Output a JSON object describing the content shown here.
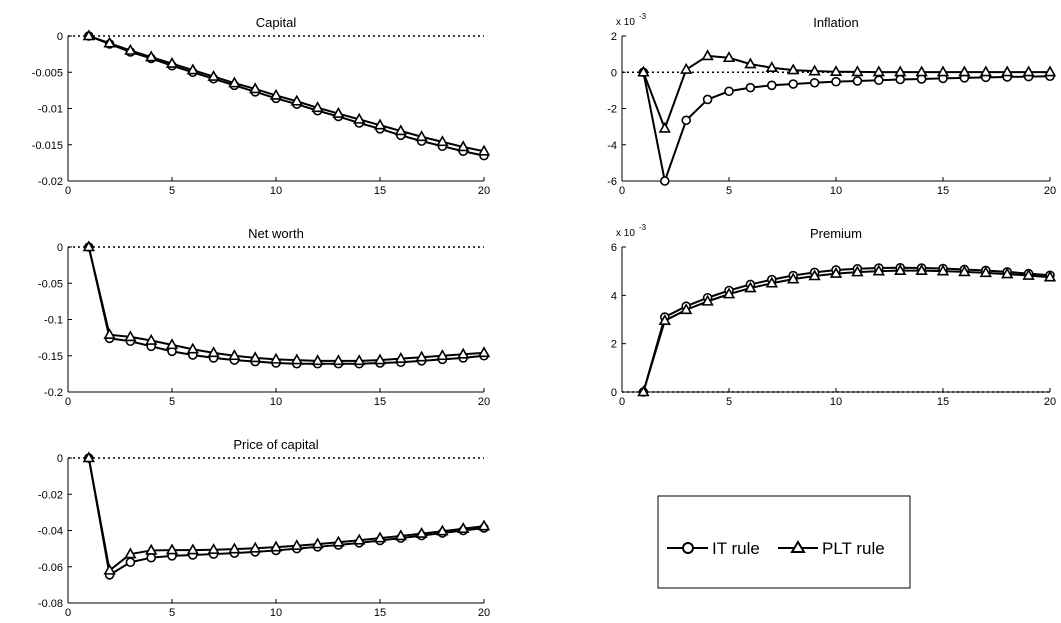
{
  "chart_data": [
    {
      "type": "line",
      "title": "Capital",
      "exponent_label": "",
      "xlim": [
        0,
        20
      ],
      "ylim": [
        -0.02,
        0
      ],
      "xticks": [
        0,
        5,
        10,
        15,
        20
      ],
      "yticks": [
        0,
        -0.005,
        -0.01,
        -0.015,
        -0.02
      ],
      "xtick_labels": [
        "0",
        "5",
        "10",
        "15",
        "20"
      ],
      "ytick_labels": [
        "0",
        "-0.005",
        "-0.01",
        "-0.015",
        "-0.02"
      ],
      "zero_line": "dotted",
      "x": [
        1,
        2,
        3,
        4,
        5,
        6,
        7,
        8,
        9,
        10,
        11,
        12,
        13,
        14,
        15,
        16,
        17,
        18,
        19,
        20
      ],
      "series": [
        {
          "marker": "circle",
          "values": [
            0,
            -0.0011,
            -0.0022,
            -0.0031,
            -0.0041,
            -0.005,
            -0.0059,
            -0.0068,
            -0.0077,
            -0.0086,
            -0.0094,
            -0.0103,
            -0.0111,
            -0.012,
            -0.0128,
            -0.0137,
            -0.0145,
            -0.0152,
            -0.0159,
            -0.0165
          ]
        },
        {
          "marker": "triangle",
          "values": [
            0,
            -0.001,
            -0.002,
            -0.0029,
            -0.0038,
            -0.0047,
            -0.0056,
            -0.0065,
            -0.0073,
            -0.0082,
            -0.009,
            -0.0099,
            -0.0107,
            -0.0115,
            -0.0123,
            -0.0131,
            -0.0139,
            -0.0146,
            -0.0153,
            -0.0159
          ]
        }
      ]
    },
    {
      "type": "line",
      "title": "Inflation",
      "exponent_label": "x 10",
      "exponent_power": "-3",
      "xlim": [
        0,
        20
      ],
      "ylim": [
        -6,
        2
      ],
      "xticks": [
        0,
        5,
        10,
        15,
        20
      ],
      "yticks": [
        2,
        0,
        -2,
        -4,
        -6
      ],
      "xtick_labels": [
        "0",
        "5",
        "10",
        "15",
        "20"
      ],
      "ytick_labels": [
        "2",
        "0",
        "-2",
        "-4",
        "-6"
      ],
      "zero_line": "dotted",
      "x": [
        1,
        2,
        3,
        4,
        5,
        6,
        7,
        8,
        9,
        10,
        11,
        12,
        13,
        14,
        15,
        16,
        17,
        18,
        19,
        20
      ],
      "series": [
        {
          "marker": "circle",
          "values": [
            0,
            -6.0,
            -2.65,
            -1.5,
            -1.05,
            -0.85,
            -0.72,
            -0.65,
            -0.58,
            -0.52,
            -0.48,
            -0.44,
            -0.4,
            -0.37,
            -0.34,
            -0.31,
            -0.28,
            -0.26,
            -0.24,
            -0.22
          ]
        },
        {
          "marker": "triangle",
          "values": [
            0,
            -3.1,
            0.15,
            0.9,
            0.8,
            0.45,
            0.25,
            0.12,
            0.06,
            0.03,
            0.02,
            0.01,
            0.01,
            0.01,
            0.01,
            0.01,
            0.01,
            0.01,
            0.01,
            0.01
          ]
        }
      ]
    },
    {
      "type": "line",
      "title": "Net worth",
      "exponent_label": "",
      "xlim": [
        0,
        20
      ],
      "ylim": [
        -0.2,
        0
      ],
      "xticks": [
        0,
        5,
        10,
        15,
        20
      ],
      "yticks": [
        0,
        -0.05,
        -0.1,
        -0.15,
        -0.2
      ],
      "xtick_labels": [
        "0",
        "5",
        "10",
        "15",
        "20"
      ],
      "ytick_labels": [
        "0",
        "-0.05",
        "-0.1",
        "-0.15",
        "-0.2"
      ],
      "zero_line": "dotted",
      "x": [
        1,
        2,
        3,
        4,
        5,
        6,
        7,
        8,
        9,
        10,
        11,
        12,
        13,
        14,
        15,
        16,
        17,
        18,
        19,
        20
      ],
      "series": [
        {
          "marker": "circle",
          "values": [
            0,
            -0.126,
            -0.13,
            -0.137,
            -0.144,
            -0.149,
            -0.153,
            -0.156,
            -0.158,
            -0.16,
            -0.161,
            -0.161,
            -0.161,
            -0.161,
            -0.16,
            -0.159,
            -0.157,
            -0.155,
            -0.153,
            -0.15
          ]
        },
        {
          "marker": "triangle",
          "values": [
            0,
            -0.121,
            -0.124,
            -0.129,
            -0.135,
            -0.141,
            -0.146,
            -0.15,
            -0.153,
            -0.155,
            -0.156,
            -0.157,
            -0.157,
            -0.157,
            -0.156,
            -0.154,
            -0.152,
            -0.15,
            -0.148,
            -0.146
          ]
        }
      ]
    },
    {
      "type": "line",
      "title": "Premium",
      "exponent_label": "x 10",
      "exponent_power": "-3",
      "xlim": [
        0,
        20
      ],
      "ylim": [
        0,
        6
      ],
      "xticks": [
        0,
        5,
        10,
        15,
        20
      ],
      "yticks": [
        6,
        4,
        2,
        0
      ],
      "xtick_labels": [
        "0",
        "5",
        "10",
        "15",
        "20"
      ],
      "ytick_labels": [
        "6",
        "4",
        "2",
        "0"
      ],
      "zero_line": "dotted",
      "x": [
        1,
        2,
        3,
        4,
        5,
        6,
        7,
        8,
        9,
        10,
        11,
        12,
        13,
        14,
        15,
        16,
        17,
        18,
        19,
        20
      ],
      "series": [
        {
          "marker": "circle",
          "values": [
            0,
            3.1,
            3.55,
            3.9,
            4.2,
            4.45,
            4.65,
            4.82,
            4.95,
            5.05,
            5.1,
            5.13,
            5.14,
            5.13,
            5.11,
            5.07,
            5.03,
            4.97,
            4.9,
            4.83
          ]
        },
        {
          "marker": "triangle",
          "values": [
            0,
            2.95,
            3.4,
            3.75,
            4.05,
            4.3,
            4.5,
            4.67,
            4.8,
            4.9,
            4.96,
            5.0,
            5.02,
            5.02,
            5.0,
            4.97,
            4.93,
            4.88,
            4.82,
            4.75
          ]
        }
      ]
    },
    {
      "type": "line",
      "title": "Price of capital",
      "exponent_label": "",
      "xlim": [
        0,
        20
      ],
      "ylim": [
        -0.08,
        0
      ],
      "xticks": [
        0,
        5,
        10,
        15,
        20
      ],
      "yticks": [
        0,
        -0.02,
        -0.04,
        -0.06,
        -0.08
      ],
      "xtick_labels": [
        "0",
        "5",
        "10",
        "15",
        "20"
      ],
      "ytick_labels": [
        "0",
        "-0.02",
        "-0.04",
        "-0.06",
        "-0.08"
      ],
      "zero_line": "dotted",
      "x": [
        1,
        2,
        3,
        4,
        5,
        6,
        7,
        8,
        9,
        10,
        11,
        12,
        13,
        14,
        15,
        16,
        17,
        18,
        19,
        20
      ],
      "series": [
        {
          "marker": "circle",
          "values": [
            0,
            -0.0645,
            -0.0575,
            -0.055,
            -0.054,
            -0.0535,
            -0.053,
            -0.0525,
            -0.0518,
            -0.051,
            -0.05,
            -0.049,
            -0.048,
            -0.0468,
            -0.0455,
            -0.0442,
            -0.0428,
            -0.0414,
            -0.04,
            -0.0386
          ]
        },
        {
          "marker": "triangle",
          "values": [
            0,
            -0.062,
            -0.053,
            -0.051,
            -0.0508,
            -0.0508,
            -0.0506,
            -0.0503,
            -0.0498,
            -0.0492,
            -0.0484,
            -0.0475,
            -0.0465,
            -0.0454,
            -0.0442,
            -0.043,
            -0.0417,
            -0.0404,
            -0.039,
            -0.0376
          ]
        }
      ]
    }
  ],
  "legend": {
    "entries": [
      {
        "label": "IT rule",
        "marker": "circle"
      },
      {
        "label": "PLT rule",
        "marker": "triangle"
      }
    ],
    "placement": "bottom-right"
  }
}
